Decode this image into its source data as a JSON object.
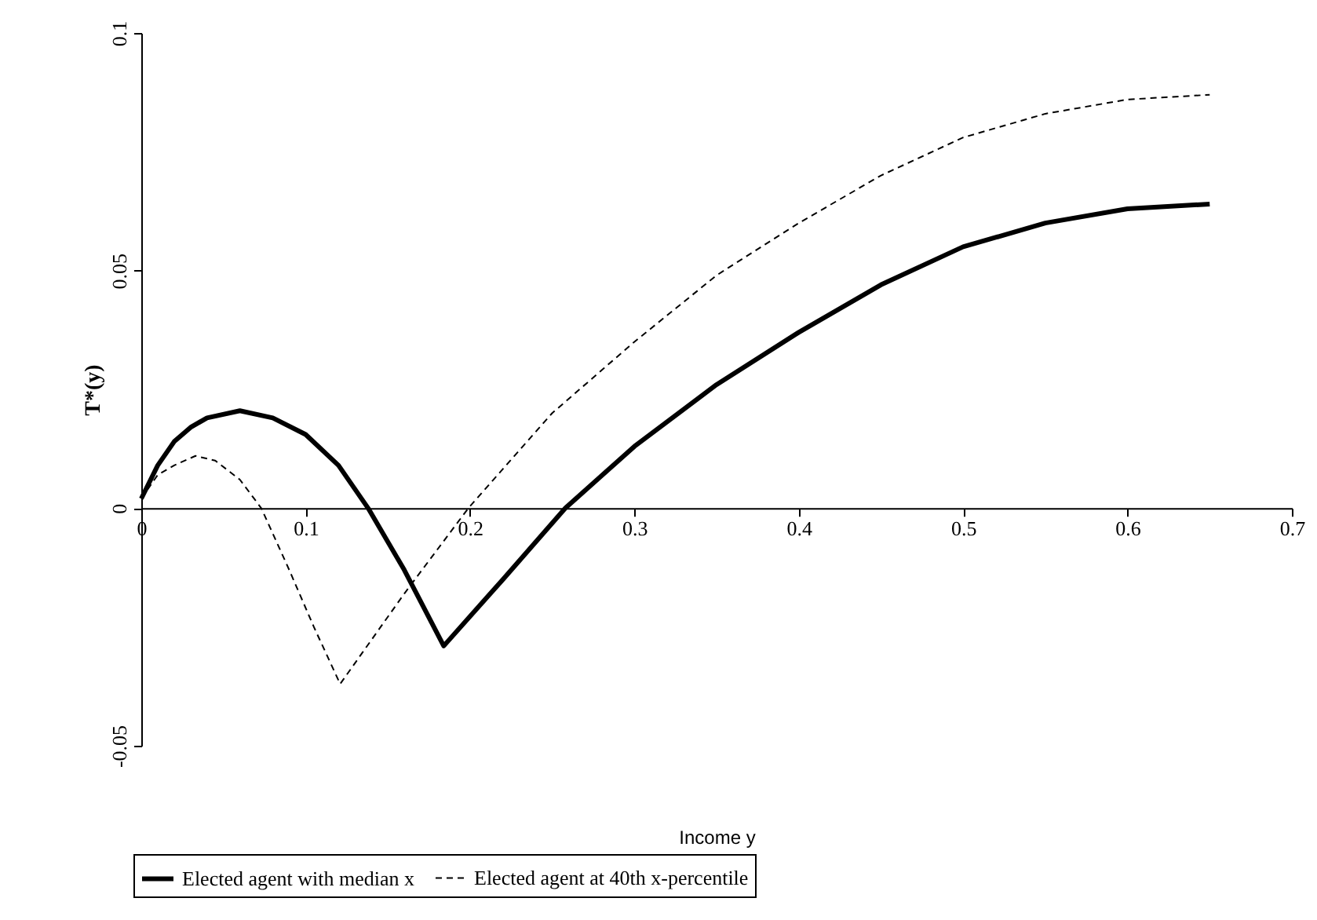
{
  "chart_data": {
    "type": "line",
    "xlabel": "Income y",
    "ylabel": "T*(y)",
    "xlim": [
      0,
      0.7
    ],
    "ylim": [
      -0.05,
      0.1
    ],
    "xticks": [
      0,
      0.1,
      0.2,
      0.3,
      0.4,
      0.5,
      0.6,
      0.7
    ],
    "yticks": [
      -0.05,
      0,
      0.05,
      0.1
    ],
    "grid": false,
    "legend": "bottom",
    "marker": "none",
    "series": [
      {
        "name": "Elected agent with median x",
        "color": "#000000",
        "line_style": "solid",
        "x": [
          0,
          0.01,
          0.02,
          0.03,
          0.04,
          0.06,
          0.08,
          0.1,
          0.12,
          0.138,
          0.16,
          0.184,
          0.22,
          0.258,
          0.3,
          0.35,
          0.4,
          0.45,
          0.5,
          0.55,
          0.6,
          0.65
        ],
        "values": [
          0.002,
          0.009,
          0.014,
          0.017,
          0.019,
          0.0205,
          0.019,
          0.0155,
          0.009,
          0,
          -0.013,
          -0.029,
          -0.015,
          0,
          0.013,
          0.026,
          0.037,
          0.047,
          0.055,
          0.06,
          0.063,
          0.064
        ]
      },
      {
        "name": "Elected agent at 40th x-percentile",
        "color": "#000000",
        "line_style": "dashed",
        "x": [
          0,
          0.01,
          0.02,
          0.033,
          0.045,
          0.06,
          0.073,
          0.09,
          0.105,
          0.121,
          0.16,
          0.199,
          0.25,
          0.3,
          0.35,
          0.4,
          0.45,
          0.5,
          0.55,
          0.6,
          0.65
        ],
        "values": [
          0.002,
          0.007,
          0.009,
          0.011,
          0.01,
          0.006,
          0,
          -0.013,
          -0.025,
          -0.037,
          -0.018,
          0,
          0.02,
          0.035,
          0.049,
          0.06,
          0.07,
          0.078,
          0.083,
          0.086,
          0.087
        ]
      }
    ]
  }
}
